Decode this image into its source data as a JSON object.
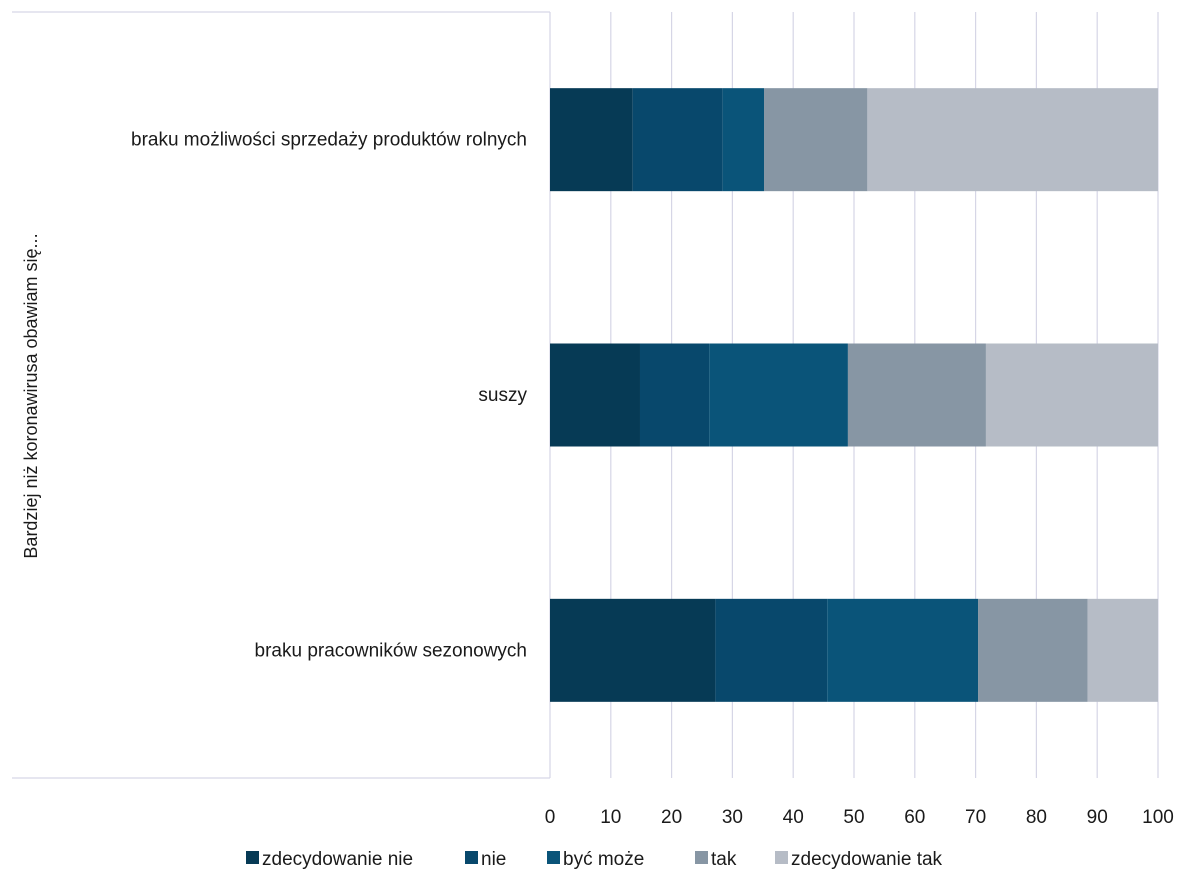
{
  "chart_data": {
    "type": "bar",
    "orientation": "horizontal",
    "stacked": true,
    "title": "",
    "ylabel": "Bardziej niż koronawirusa obawiam się...",
    "xlabel": "",
    "xlim": [
      0,
      100
    ],
    "xticks": [
      0,
      10,
      20,
      30,
      40,
      50,
      60,
      70,
      80,
      90,
      100
    ],
    "grid": true,
    "legend_position": "bottom",
    "categories": [
      "braku możliwości sprzedaży produktów rolnych",
      "suszy",
      "braku pracowników sezonowych"
    ],
    "series": [
      {
        "name": "zdecydowanie nie",
        "color": "#063a55",
        "values": [
          13.6,
          14.8,
          27.2
        ]
      },
      {
        "name": "nie",
        "color": "#08486c",
        "values": [
          14.8,
          11.4,
          18.4
        ]
      },
      {
        "name": "być może",
        "color": "#0a5479",
        "values": [
          6.8,
          22.8,
          24.8
        ]
      },
      {
        "name": "tak",
        "color": "#8796a4",
        "values": [
          17.0,
          22.7,
          18.0
        ]
      },
      {
        "name": "zdecydowanie tak",
        "color": "#b6bcc6",
        "values": [
          47.8,
          28.3,
          11.6
        ]
      }
    ]
  }
}
